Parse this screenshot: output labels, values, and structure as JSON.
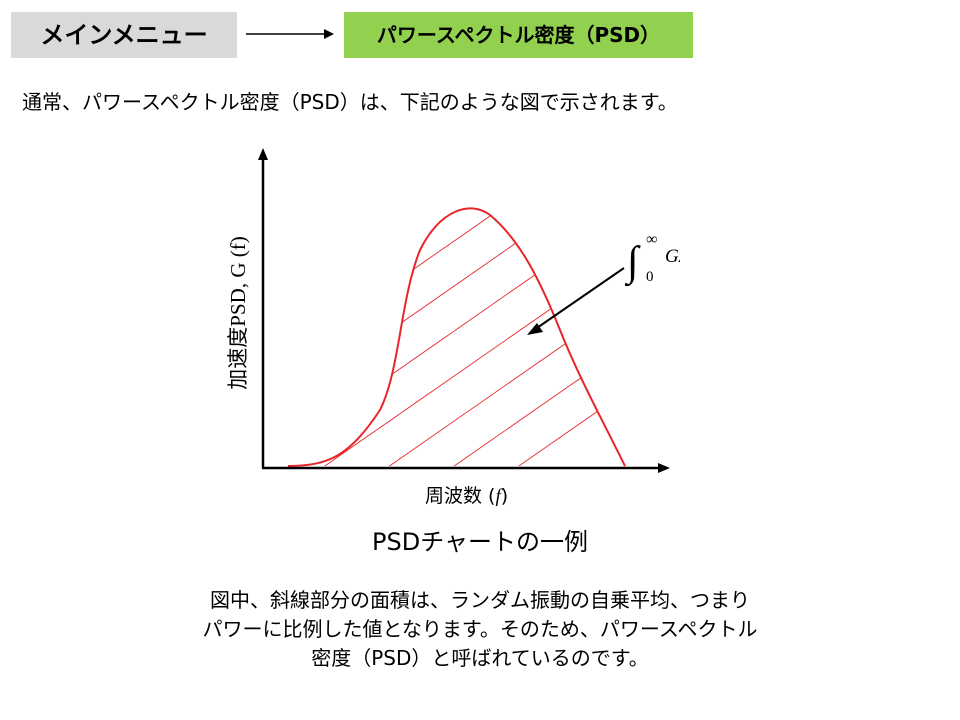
{
  "header": {
    "main_menu_label": "メインメニュー",
    "current_page_label": "パワースペクトル密度（PSD）",
    "main_menu_bg": "#d9d9d9",
    "current_page_bg": "#92d050"
  },
  "intro_text": "通常、パワースペクトル密度（PSD）は、下記のような図で示されます。",
  "figure": {
    "y_axis_label": "加速度PSD, G (f)",
    "x_axis_label_text": "周波数 (",
    "x_axis_label_var": "f",
    "x_axis_label_close": ")",
    "integral": {
      "upper_limit": "∞",
      "lower_limit": "0",
      "integrand": "Gx(f)df"
    },
    "curve_color": "#e8262a",
    "caption": "PSDチャートの一例"
  },
  "description": {
    "line1": "図中、斜線部分の面積は、ランダム振動の自乗平均、つまり",
    "line2": "パワーに比例した値となります。そのため、パワースペクトル",
    "line3": "密度（PSD）と呼ばれているのです。"
  }
}
